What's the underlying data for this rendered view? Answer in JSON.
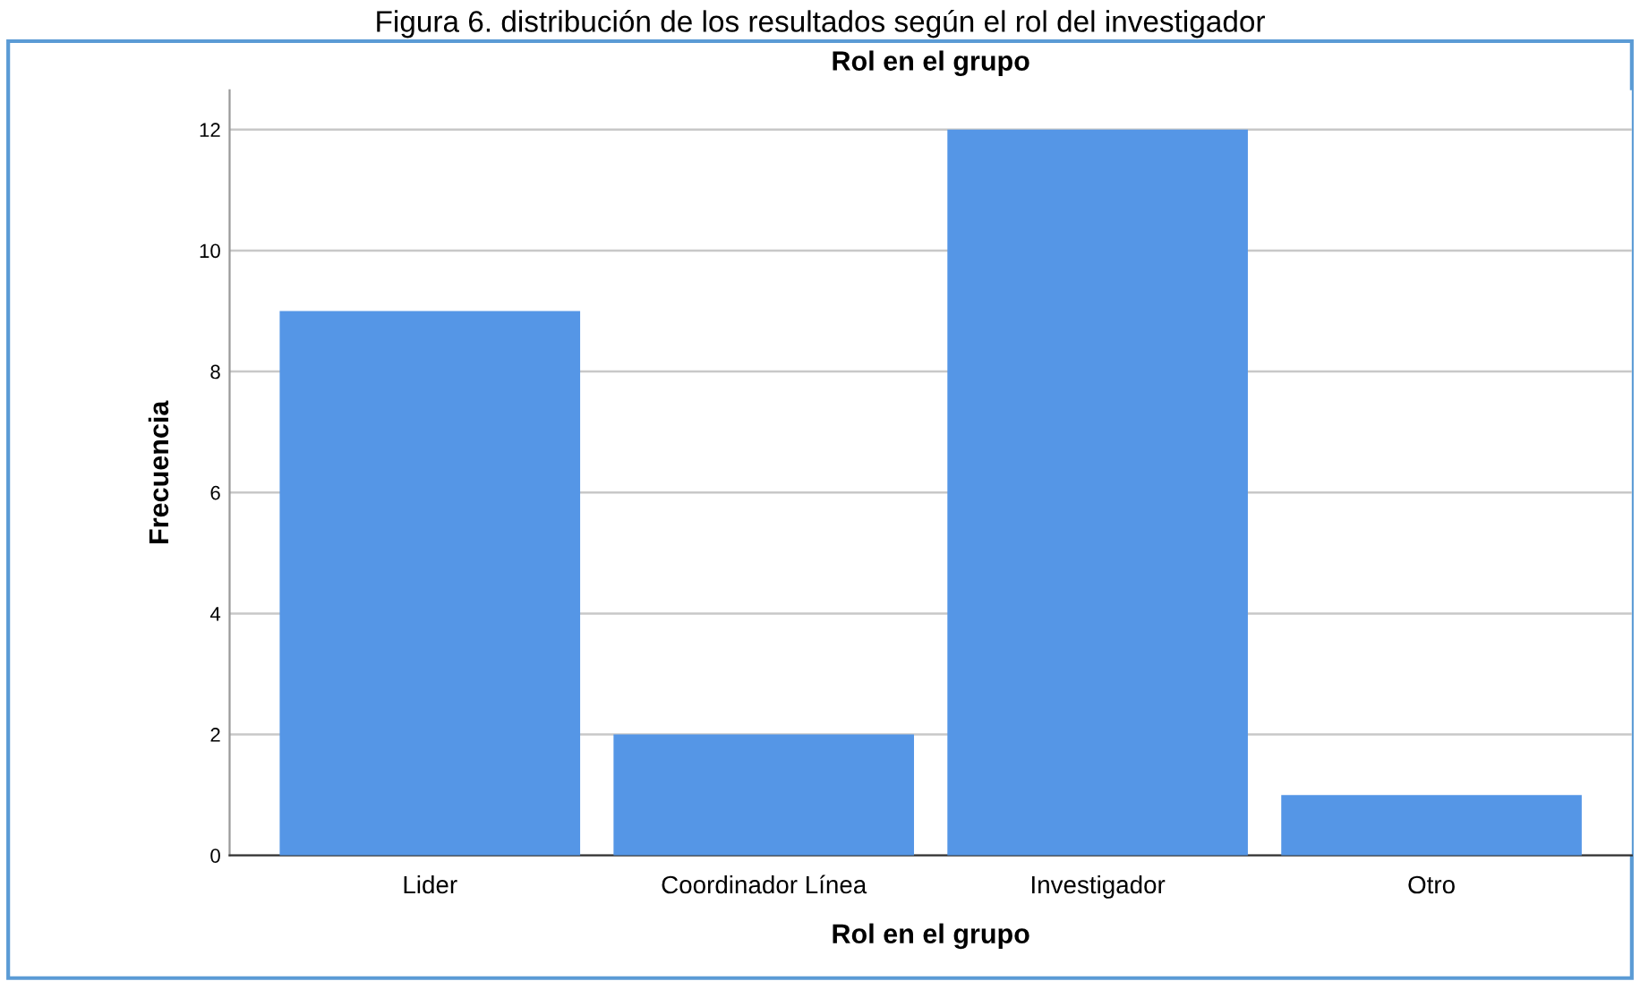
{
  "chart_data": {
    "type": "bar",
    "title": "Rol en el grupo",
    "xlabel": "Rol en el grupo",
    "ylabel": "Frecuencia",
    "annotations": [
      "Figura 6. distribución de los resultados según el rol del investigador"
    ],
    "categories": [
      "Lider",
      "Coordinador Línea",
      "Investigador",
      "Otro"
    ],
    "values": [
      9,
      2,
      12,
      1
    ],
    "color": "#5596e6",
    "ylim": [
      0,
      12.65
    ],
    "yticks": [
      0,
      2,
      4,
      6,
      8,
      10,
      12
    ],
    "grid": "y",
    "legend": false
  }
}
